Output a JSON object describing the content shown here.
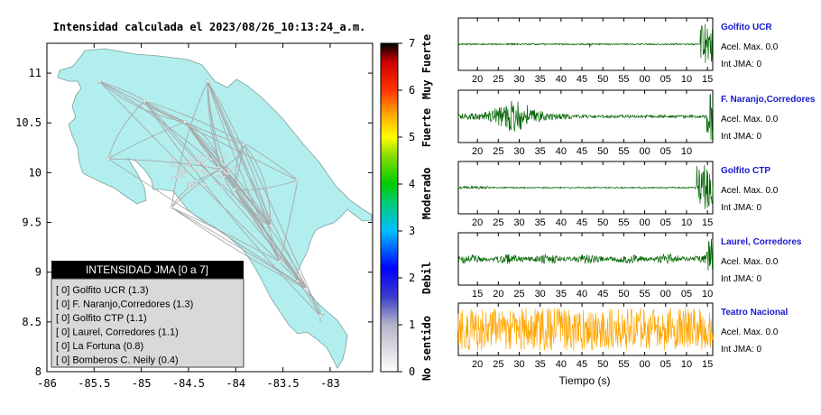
{
  "map_panel": {
    "title": "Intensidad calculada el 2023/08/26_10:13:24_a.m.",
    "x_ticks": [
      "-86",
      "-85.5",
      "-85",
      "-84.5",
      "-84",
      "-83.5",
      "-83"
    ],
    "y_ticks": [
      "11",
      "10.5",
      "10",
      "9.5",
      "9",
      "8.5",
      "8"
    ],
    "land_color": "#b2eeee",
    "road_color": "#a8a8a8",
    "legend": {
      "title": "INTENSIDAD JMA [0 a 7]",
      "items": [
        {
          "label": "[ 0]  Golfito UCR (1.3)"
        },
        {
          "label": "[ 0]  F. Naranjo,Corredores (1.3)"
        },
        {
          "label": "[ 0]  Golfito CTP (1.1)"
        },
        {
          "label": "[ 0]  Laurel, Corredores (1.1)"
        },
        {
          "label": "[ 0]  La Fortuna (0.8)"
        },
        {
          "label": "[ 0]  Bomberos C. Neily (0.4)"
        }
      ]
    }
  },
  "colorbar": {
    "ticks": [
      "0",
      "1",
      "2",
      "3",
      "4",
      "5",
      "6",
      "7"
    ],
    "class_labels": [
      "No sentido",
      "Debil",
      "Moderado",
      "Fuerte",
      "Muy Fuerte"
    ],
    "stops": [
      {
        "value": 0,
        "color": "#ffffff"
      },
      {
        "value": 1,
        "color": "#b4b4c8"
      },
      {
        "value": 1.6,
        "color": "#3c3ccc"
      },
      {
        "value": 2.2,
        "color": "#0000ff"
      },
      {
        "value": 3,
        "color": "#00bfff"
      },
      {
        "value": 3.6,
        "color": "#00cc77"
      },
      {
        "value": 4,
        "color": "#00cc00"
      },
      {
        "value": 4.6,
        "color": "#88dd00"
      },
      {
        "value": 5,
        "color": "#ffff00"
      },
      {
        "value": 5.5,
        "color": "#ffa500"
      },
      {
        "value": 6,
        "color": "#ff3300"
      },
      {
        "value": 6.6,
        "color": "#cc0000"
      },
      {
        "value": 7,
        "color": "#000000"
      }
    ]
  },
  "waveforms": {
    "x_label": "Tiempo (s)",
    "panels": [
      {
        "station": "Golfito UCR",
        "accel": "Acel. Max. 0.0",
        "jma": "Int JMA: 0",
        "color": "#006400",
        "ticks": [
          "20",
          "25",
          "30",
          "35",
          "40",
          "45",
          "50",
          "55",
          "00",
          "05",
          "10",
          "15"
        ],
        "profile": "spike_end_small"
      },
      {
        "station": "F. Naranjo,Corredores",
        "accel": "Acel. Max. 0.0",
        "jma": "Int JMA: 0",
        "color": "#006400",
        "ticks": [
          "20",
          "25",
          "30",
          "35",
          "40",
          "45",
          "50",
          "55",
          "00",
          "05",
          "10"
        ],
        "profile": "burst_early"
      },
      {
        "station": "Golfito CTP",
        "accel": "Acel. Max. 0.0",
        "jma": "Int JMA: 0",
        "color": "#006400",
        "ticks": [
          "20",
          "25",
          "30",
          "35",
          "40",
          "45",
          "50",
          "55",
          "00",
          "05",
          "10",
          "15"
        ],
        "profile": "spike_end_large"
      },
      {
        "station": "Laurel, Corredores",
        "accel": "Acel. Max. 0.0",
        "jma": "Int JMA: 0",
        "color": "#006400",
        "ticks": [
          "15",
          "20",
          "25",
          "30",
          "35",
          "40",
          "45",
          "50",
          "55",
          "00",
          "05",
          "10"
        ],
        "profile": "moderate_noise"
      },
      {
        "station": "Teatro Nacional",
        "accel": "Acel. Max. 0.0",
        "jma": "Int JMA: 0",
        "color": "#ffa500",
        "ticks": [
          "20",
          "25",
          "30",
          "35",
          "40",
          "45",
          "50",
          "55",
          "00",
          "05",
          "10",
          "15"
        ],
        "profile": "full_noise"
      }
    ]
  },
  "chart_data": [
    {
      "type": "heatmap",
      "title": "Intensidad calculada el 2023/08/26_10:13:24_a.m.",
      "xlim": [
        -86,
        -82.55
      ],
      "ylim": [
        8,
        11.3
      ],
      "x_ticks": [
        -86,
        -85.5,
        -85,
        -84.5,
        -84,
        -83.5,
        -83
      ],
      "y_ticks": [
        8,
        8.5,
        9,
        9.5,
        10,
        10.5,
        11
      ],
      "legend": "bottom-left",
      "legend_title": "INTENSIDAD JMA [0 a 7]",
      "stations": [
        {
          "name": "Golfito UCR",
          "jma_class": 0,
          "value": 1.3
        },
        {
          "name": "F. Naranjo,Corredores",
          "jma_class": 0,
          "value": 1.3
        },
        {
          "name": "Golfito CTP",
          "jma_class": 0,
          "value": 1.1
        },
        {
          "name": "Laurel, Corredores",
          "jma_class": 0,
          "value": 1.1
        },
        {
          "name": "La Fortuna",
          "jma_class": 0,
          "value": 0.8
        },
        {
          "name": "Bomberos C. Neily",
          "jma_class": 0,
          "value": 0.4
        }
      ],
      "colorbar": {
        "range": [
          0,
          7
        ],
        "labels": [
          "No sentido",
          "Debil",
          "Moderado",
          "Fuerte",
          "Muy Fuerte"
        ]
      }
    },
    {
      "type": "line",
      "xlabel": "Tiempo (s)",
      "series": [
        {
          "name": "Golfito UCR",
          "accel_max": 0.0,
          "int_jma": 0
        },
        {
          "name": "F. Naranjo,Corredores",
          "accel_max": 0.0,
          "int_jma": 0
        },
        {
          "name": "Golfito CTP",
          "accel_max": 0.0,
          "int_jma": 0
        },
        {
          "name": "Laurel, Corredores",
          "accel_max": 0.0,
          "int_jma": 0
        },
        {
          "name": "Teatro Nacional",
          "accel_max": 0.0,
          "int_jma": 0
        }
      ]
    }
  ]
}
